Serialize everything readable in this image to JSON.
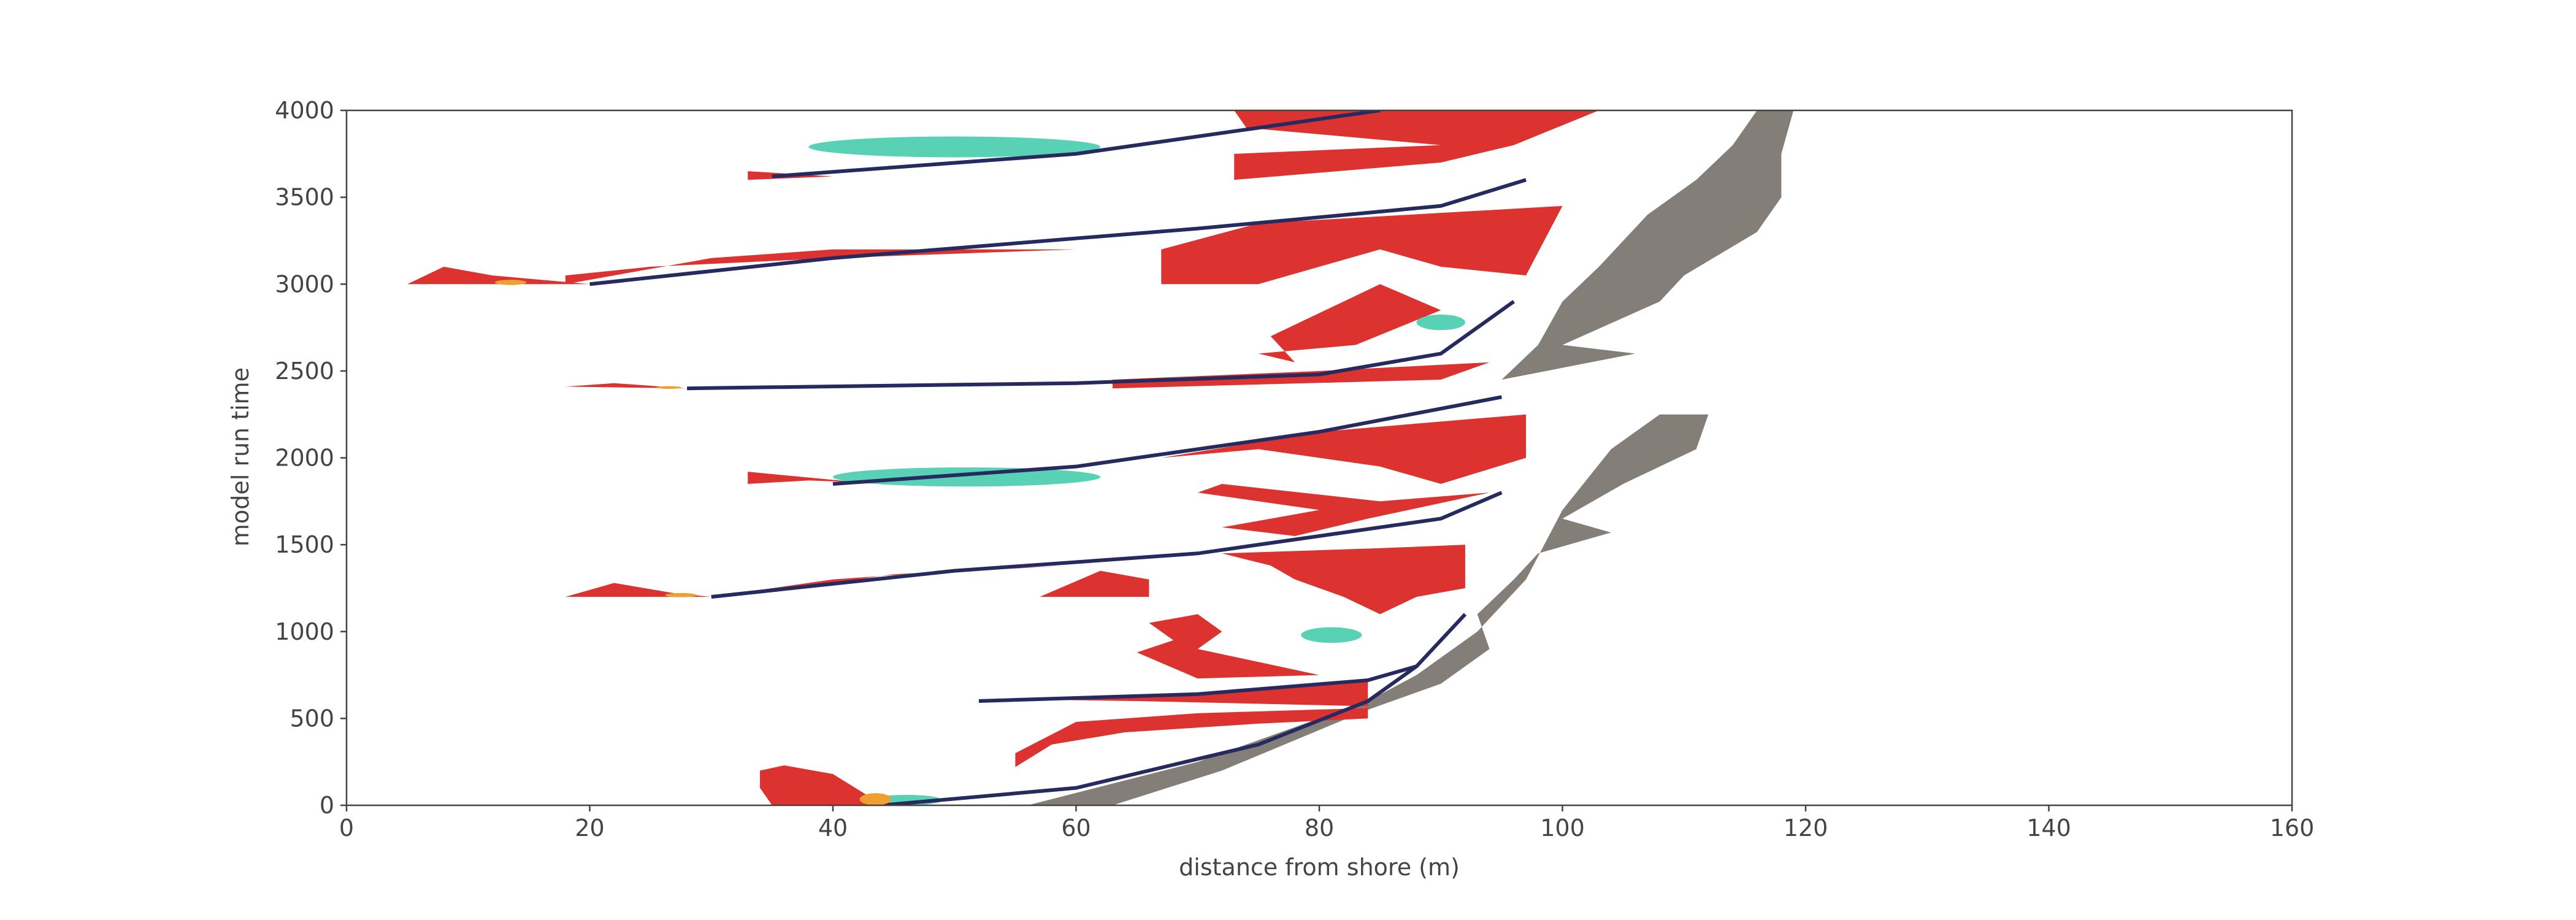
{
  "chart_data": {
    "type": "image",
    "x_label": "distance from shore (m)",
    "y_label": "model run time",
    "xlim": [
      0,
      160
    ],
    "ylim": [
      0,
      4000
    ],
    "xticks": [
      0,
      20,
      40,
      60,
      80,
      100,
      120,
      140,
      160
    ],
    "yticks": [
      0,
      500,
      1000,
      1500,
      2000,
      2500,
      3000,
      3500,
      4000
    ]
  }
}
